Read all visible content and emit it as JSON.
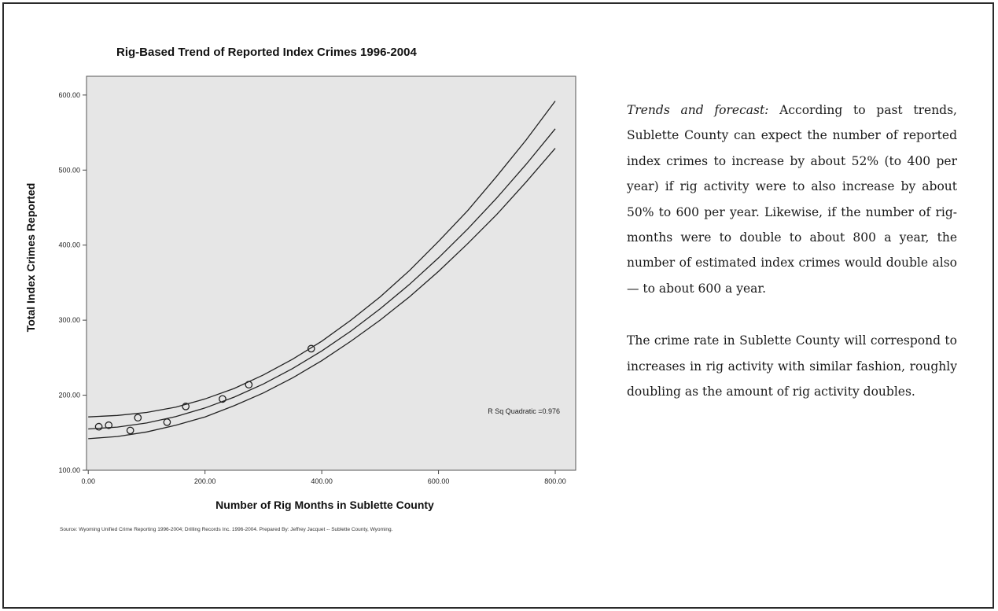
{
  "chart_data": {
    "type": "scatter",
    "title": "Rig-Based Trend of Reported Index Crimes 1996-2004",
    "xlabel": "Number of Rig Months in Sublette County",
    "ylabel": "Total Index Crimes Reported",
    "xlim": [
      -3,
      835
    ],
    "ylim": [
      100,
      625
    ],
    "xticks": [
      0,
      200,
      400,
      600,
      800
    ],
    "xtick_labels": [
      "0.00",
      "200.00",
      "400.00",
      "600.00",
      "800.00"
    ],
    "yticks": [
      100,
      200,
      300,
      400,
      500,
      600
    ],
    "ytick_labels": [
      "100.00",
      "200.00",
      "300.00",
      "400.00",
      "500.00",
      "600.00"
    ],
    "grid": false,
    "background": "#e6e6e6",
    "points": [
      {
        "x": 18,
        "y": 158
      },
      {
        "x": 35,
        "y": 160
      },
      {
        "x": 72,
        "y": 153
      },
      {
        "x": 85,
        "y": 170
      },
      {
        "x": 135,
        "y": 164
      },
      {
        "x": 167,
        "y": 185
      },
      {
        "x": 230,
        "y": 195
      },
      {
        "x": 275,
        "y": 214
      },
      {
        "x": 382,
        "y": 262
      }
    ],
    "fit": {
      "model": "quadratic",
      "x": [
        0,
        50,
        100,
        150,
        200,
        250,
        300,
        350,
        400,
        450,
        500,
        550,
        600,
        650,
        700,
        750,
        800
      ],
      "upper": [
        171,
        173,
        177,
        184,
        195,
        209,
        227,
        248,
        272,
        300,
        331,
        366,
        405,
        446,
        492,
        540,
        592
      ],
      "fit": [
        155.0,
        157.5,
        163.0,
        171.5,
        183.0,
        197.5,
        215.0,
        235.5,
        259.0,
        285.5,
        315.0,
        347.5,
        383.0,
        421.5,
        463.0,
        507.5,
        555.0
      ],
      "lower": [
        142,
        145,
        151,
        160,
        171,
        186,
        203,
        223,
        246,
        272,
        300,
        331,
        365,
        402,
        441,
        484,
        529
      ]
    },
    "annotation": "R Sq Quadratic =0.976",
    "source_note": "Source: Wyoming Unified Crime Reporting 1996-2004; Drilling Records Inc. 1996-2004.    Prepared By: Jeffrey Jacquet -- Sublette County, Wyoming."
  },
  "text": {
    "lead": "Trends and forecast:",
    "para1": "According to past trends, Sublette County can expect the number of reported index crimes to increase by about 52% (to 400 per year) if rig activity were to also increase by about 50% to 600 per year.  Likewise, if the number of rig-months were to double to about 800 a year, the number of estimated index crimes would double also — to about 600 a year.",
    "para2": "The crime rate in Sublette County will correspond to increases in rig activity with similar fashion, roughly doubling as the amount of rig activity doubles."
  }
}
